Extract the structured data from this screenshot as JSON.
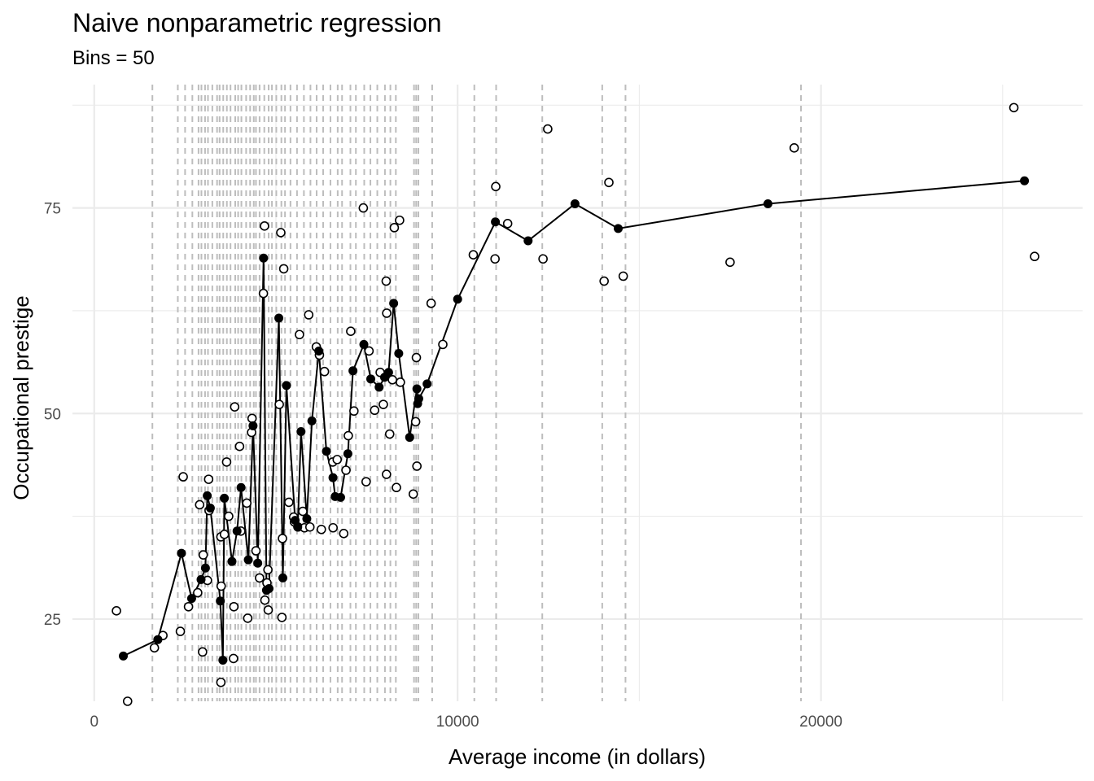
{
  "chart_data": {
    "type": "scatter",
    "title": "Naive nonparametric regression",
    "subtitle": "Bins = 50",
    "xlabel": "Average income (in dollars)",
    "ylabel": "Occupational prestige",
    "xlim": [
      -600,
      27200
    ],
    "ylim": [
      15,
      90
    ],
    "x_ticks": [
      0,
      10000,
      20000
    ],
    "x_tick_labels": [
      "0",
      "10000",
      "20000"
    ],
    "y_ticks": [
      25,
      50,
      75
    ],
    "y_tick_labels": [
      "25",
      "50",
      "75"
    ],
    "grid": true,
    "colors": {
      "grid": "#ebebeb",
      "bin_lines": "#bdbdbd",
      "points": "#000000",
      "bin_means": "#000000",
      "tick_text": "#4d4d4d"
    },
    "bin_breaks": [
      1600,
      2300,
      2500,
      2700,
      2870,
      2950,
      3050,
      3130,
      3250,
      3380,
      3450,
      3550,
      3650,
      3750,
      3880,
      3960,
      4050,
      4180,
      4290,
      4390,
      4450,
      4550,
      4680,
      4800,
      4890,
      5010,
      5150,
      5250,
      5400,
      5580,
      5770,
      5950,
      6120,
      6300,
      6500,
      6700,
      6820,
      7050,
      7200,
      7430,
      7600,
      7790,
      8000,
      8150,
      8300,
      8800,
      8860,
      8920,
      9300,
      10460,
      11060,
      12330,
      13980,
      14620,
      19450
    ],
    "series": [
      {
        "style": "open-circle",
        "points": [
          [
            611,
            26
          ],
          [
            918,
            15
          ],
          [
            1656,
            21.5
          ],
          [
            1890,
            23
          ],
          [
            2370,
            23.5
          ],
          [
            2448,
            42.3
          ],
          [
            2594,
            26.5
          ],
          [
            2847,
            28.2
          ],
          [
            2901,
            38.9
          ],
          [
            2981,
            21
          ],
          [
            3000,
            32.8
          ],
          [
            3116,
            29.7
          ],
          [
            3148,
            42
          ],
          [
            3161,
            38.2
          ],
          [
            3485,
            35
          ],
          [
            3485,
            17.3
          ],
          [
            3493,
            29
          ],
          [
            3582,
            35.3
          ],
          [
            3643,
            44.1
          ],
          [
            3700,
            37.5
          ],
          [
            3832,
            20.2
          ],
          [
            3843,
            26.5
          ],
          [
            3865,
            50.8
          ],
          [
            4000,
            46
          ],
          [
            4036,
            35.7
          ],
          [
            4199,
            39.1
          ],
          [
            4224,
            25.1
          ],
          [
            4330,
            47.7
          ],
          [
            4343,
            49.4
          ],
          [
            4451,
            33.3
          ],
          [
            4549,
            30
          ],
          [
            4656,
            64.6
          ],
          [
            4686,
            72.8
          ],
          [
            4696,
            27.3
          ],
          [
            4753,
            29.4
          ],
          [
            4780,
            31
          ],
          [
            4788,
            26.1
          ],
          [
            5092,
            51.1
          ],
          [
            5134,
            72
          ],
          [
            5165,
            25.2
          ],
          [
            5180,
            34.8
          ],
          [
            5215,
            67.6
          ],
          [
            5356,
            39.2
          ],
          [
            5488,
            37.4
          ],
          [
            5511,
            36.8
          ],
          [
            5607,
            36.2
          ],
          [
            5648,
            59.6
          ],
          [
            5740,
            38.1
          ],
          [
            5786,
            36.1
          ],
          [
            5902,
            62
          ],
          [
            5935,
            36.2
          ],
          [
            6112,
            58.1
          ],
          [
            6197,
            57.1
          ],
          [
            6250,
            35.9
          ],
          [
            6336,
            55.1
          ],
          [
            6565,
            44.1
          ],
          [
            6573,
            36.1
          ],
          [
            6686,
            44.4
          ],
          [
            6866,
            35.4
          ],
          [
            6928,
            43.1
          ],
          [
            6992,
            47.3
          ],
          [
            7059,
            60
          ],
          [
            7147,
            50.3
          ],
          [
            7405,
            75
          ],
          [
            7482,
            41.7
          ],
          [
            7562,
            57.6
          ],
          [
            7716,
            50.4
          ],
          [
            7869,
            55
          ],
          [
            7956,
            51.1
          ],
          [
            8034,
            66.1
          ],
          [
            8043,
            42.6
          ],
          [
            8049,
            62.2
          ],
          [
            8131,
            47.5
          ],
          [
            8206,
            54.1
          ],
          [
            8258,
            72.6
          ],
          [
            8316,
            41
          ],
          [
            8403,
            73.5
          ],
          [
            8425,
            53.8
          ],
          [
            8780,
            40.2
          ],
          [
            8845,
            49
          ],
          [
            8865,
            56.8
          ],
          [
            8880,
            43.6
          ],
          [
            9271,
            63.4
          ],
          [
            9593,
            58.4
          ],
          [
            10432,
            69.3
          ],
          [
            11030,
            68.8
          ],
          [
            11050,
            77.6
          ],
          [
            11377,
            73.1
          ],
          [
            12351,
            68.8
          ],
          [
            12480,
            84.6
          ],
          [
            14032,
            66.1
          ],
          [
            14163,
            78.1
          ],
          [
            14558,
            66.7
          ],
          [
            17498,
            68.4
          ],
          [
            19263,
            82.3
          ],
          [
            25308,
            87.2
          ],
          [
            25879,
            69.1
          ]
        ]
      },
      {
        "style": "filled-circle-line",
        "points": [
          [
            800,
            20.5
          ],
          [
            1750,
            22.5
          ],
          [
            2400,
            33
          ],
          [
            2680,
            27.5
          ],
          [
            2940,
            29.8
          ],
          [
            3060,
            31.2
          ],
          [
            3110,
            40
          ],
          [
            3195,
            38.5
          ],
          [
            3470,
            27.2
          ],
          [
            3540,
            20
          ],
          [
            3580,
            39.7
          ],
          [
            3790,
            32
          ],
          [
            3930,
            35.7
          ],
          [
            4040,
            41
          ],
          [
            4240,
            32.2
          ],
          [
            4370,
            48.5
          ],
          [
            4500,
            31.8
          ],
          [
            4660,
            68.9
          ],
          [
            4740,
            28.5
          ],
          [
            4810,
            28.7
          ],
          [
            5080,
            61.6
          ],
          [
            5190,
            30
          ],
          [
            5290,
            53.4
          ],
          [
            5530,
            37
          ],
          [
            5600,
            36.2
          ],
          [
            5690,
            47.8
          ],
          [
            5850,
            37.2
          ],
          [
            5990,
            49.1
          ],
          [
            6180,
            57.6
          ],
          [
            6390,
            45.4
          ],
          [
            6570,
            42.2
          ],
          [
            6630,
            39.9
          ],
          [
            6780,
            39.8
          ],
          [
            6980,
            45.1
          ],
          [
            7120,
            55.2
          ],
          [
            7420,
            58.4
          ],
          [
            7610,
            54.2
          ],
          [
            7840,
            53.2
          ],
          [
            7990,
            54.4
          ],
          [
            8100,
            55
          ],
          [
            8240,
            63.4
          ],
          [
            8380,
            57.3
          ],
          [
            8680,
            47.1
          ],
          [
            8880,
            53
          ],
          [
            8900,
            51.2
          ],
          [
            8930,
            51.8
          ],
          [
            9160,
            53.6
          ],
          [
            10000,
            63.9
          ],
          [
            11040,
            73.3
          ],
          [
            11940,
            71
          ],
          [
            13230,
            75.5
          ],
          [
            14420,
            72.5
          ],
          [
            18540,
            75.5
          ],
          [
            25600,
            78.3
          ]
        ]
      }
    ]
  }
}
